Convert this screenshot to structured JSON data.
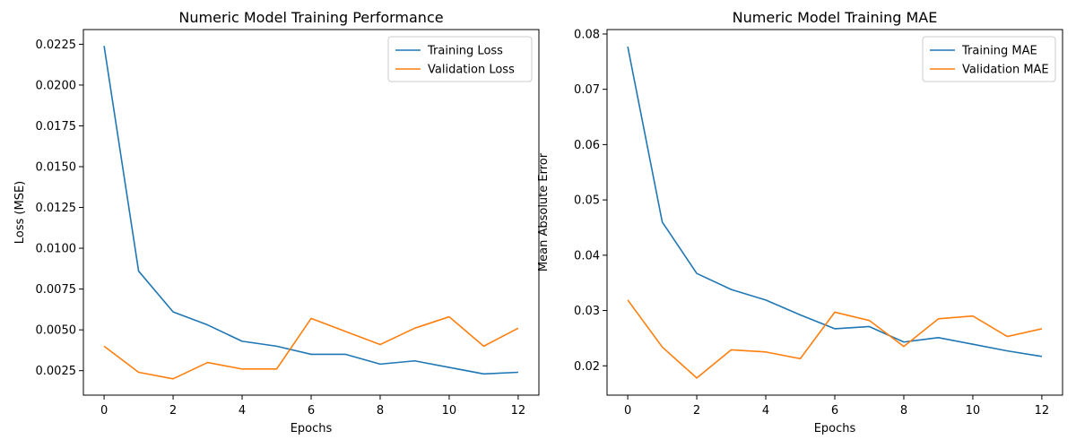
{
  "chart_data": [
    {
      "type": "line",
      "title": "Numeric Model Training Performance",
      "xlabel": "Epochs",
      "ylabel": "Loss (MSE)",
      "x": [
        0,
        1,
        2,
        3,
        4,
        5,
        6,
        7,
        8,
        9,
        10,
        11,
        12
      ],
      "xlim": [
        -0.6,
        12.6
      ],
      "ylim": [
        0.001,
        0.0234
      ],
      "xticks": [
        "0",
        "2",
        "4",
        "6",
        "8",
        "10",
        "12"
      ],
      "yticks": [
        "0.0025",
        "0.0050",
        "0.0075",
        "0.0100",
        "0.0125",
        "0.0150",
        "0.0175",
        "0.0200",
        "0.0225"
      ],
      "legend_position": "upper right",
      "series": [
        {
          "name": "Training Loss",
          "color": "#1f77b4",
          "values": [
            0.0224,
            0.0086,
            0.0061,
            0.0053,
            0.0043,
            0.004,
            0.0035,
            0.0035,
            0.0029,
            0.0031,
            0.0027,
            0.0023,
            0.0024
          ]
        },
        {
          "name": "Validation Loss",
          "color": "#ff7f0e",
          "values": [
            0.004,
            0.0024,
            0.002,
            0.003,
            0.0026,
            0.0026,
            0.0057,
            0.0049,
            0.0041,
            0.0051,
            0.0058,
            0.004,
            0.0051
          ]
        }
      ]
    },
    {
      "type": "line",
      "title": "Numeric Model Training MAE",
      "xlabel": "Epochs",
      "ylabel": "Mean Absolute Error",
      "x": [
        0,
        1,
        2,
        3,
        4,
        5,
        6,
        7,
        8,
        9,
        10,
        11,
        12
      ],
      "xlim": [
        -0.6,
        12.6
      ],
      "ylim": [
        0.0147,
        0.0808
      ],
      "xticks": [
        "0",
        "2",
        "4",
        "6",
        "8",
        "10",
        "12"
      ],
      "yticks": [
        "0.02",
        "0.03",
        "0.04",
        "0.05",
        "0.06",
        "0.07",
        "0.08"
      ],
      "legend_position": "upper right",
      "series": [
        {
          "name": "Training MAE",
          "color": "#1f77b4",
          "values": [
            0.0777,
            0.046,
            0.0367,
            0.0338,
            0.0319,
            0.0292,
            0.0267,
            0.0271,
            0.0243,
            0.0251,
            0.0239,
            0.0227,
            0.0217
          ]
        },
        {
          "name": "Validation MAE",
          "color": "#ff7f0e",
          "values": [
            0.0319,
            0.0234,
            0.0178,
            0.0229,
            0.0225,
            0.0213,
            0.0297,
            0.0282,
            0.0235,
            0.0285,
            0.029,
            0.0253,
            0.0267
          ]
        }
      ]
    }
  ]
}
